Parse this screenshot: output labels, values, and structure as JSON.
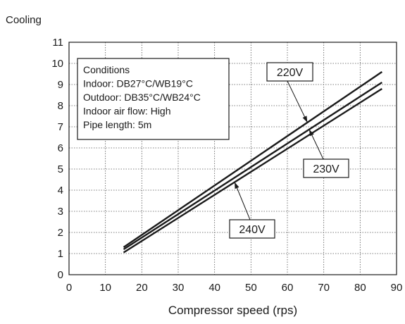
{
  "chart_data": {
    "type": "line",
    "title": "Cooling",
    "xlabel": "Compressor speed (rps)",
    "ylabel": "",
    "xlim": [
      0,
      90
    ],
    "ylim": [
      0,
      11
    ],
    "x_ticks": [
      0,
      10,
      20,
      30,
      40,
      50,
      60,
      70,
      80,
      90
    ],
    "y_ticks": [
      0,
      1,
      2,
      3,
      4,
      5,
      6,
      7,
      8,
      9,
      10,
      11
    ],
    "grid": true,
    "series": [
      {
        "name": "220V",
        "x": [
          15,
          86
        ],
        "y": [
          1.3,
          9.6
        ]
      },
      {
        "name": "230V",
        "x": [
          15,
          86
        ],
        "y": [
          1.2,
          9.1
        ]
      },
      {
        "name": "240V",
        "x": [
          15,
          86
        ],
        "y": [
          1.05,
          8.8
        ]
      }
    ],
    "conditions_box": {
      "lines": [
        "Conditions",
        "Indoor: DB27°C/WB19°C",
        "Outdoor: DB35°C/WB24°C",
        "Indoor air flow: High",
        "Pipe length: 5m"
      ],
      "position": "top-left"
    },
    "line_color": "#1a1a1a"
  }
}
